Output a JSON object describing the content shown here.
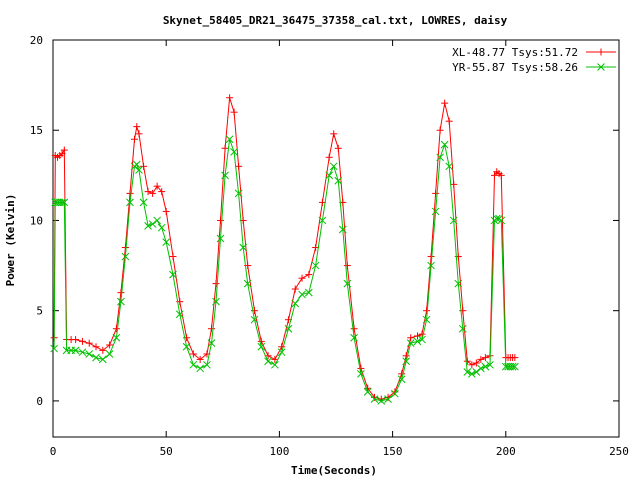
{
  "chart_data": {
    "type": "line",
    "title": "Skynet_58405_DR21_36475_37358_cal.txt, LOWRES, daisy",
    "xlabel": "Time(Seconds)",
    "ylabel": "Power (Kelvin)",
    "xlim": [
      0,
      250
    ],
    "ylim": [
      -2,
      20
    ],
    "xticks": [
      0,
      50,
      100,
      150,
      200,
      250
    ],
    "yticks": [
      0,
      5,
      10,
      15,
      20
    ],
    "legend_position": "top-right",
    "grid": false,
    "series": [
      {
        "name": "XL-48.77 Tsys:51.72",
        "color": "#ff0000",
        "marker": "+",
        "points": [
          [
            0.5,
            3.5
          ],
          [
            1,
            13.6
          ],
          [
            2,
            13.5
          ],
          [
            3,
            13.6
          ],
          [
            4,
            13.7
          ],
          [
            5,
            13.9
          ],
          [
            6,
            3.4
          ],
          [
            8,
            3.4
          ],
          [
            10,
            3.4
          ],
          [
            13,
            3.3
          ],
          [
            16,
            3.2
          ],
          [
            19,
            3.0
          ],
          [
            22,
            2.8
          ],
          [
            25,
            3.1
          ],
          [
            28,
            4.0
          ],
          [
            30,
            6.0
          ],
          [
            32,
            8.5
          ],
          [
            34,
            11.5
          ],
          [
            36,
            14.5
          ],
          [
            37,
            15.2
          ],
          [
            38,
            14.8
          ],
          [
            40,
            13.0
          ],
          [
            42,
            11.6
          ],
          [
            44,
            11.5
          ],
          [
            46,
            11.9
          ],
          [
            48,
            11.6
          ],
          [
            50,
            10.5
          ],
          [
            53,
            8.0
          ],
          [
            56,
            5.5
          ],
          [
            59,
            3.5
          ],
          [
            62,
            2.6
          ],
          [
            65,
            2.3
          ],
          [
            68,
            2.6
          ],
          [
            70,
            4.0
          ],
          [
            72,
            6.5
          ],
          [
            74,
            10.0
          ],
          [
            76,
            14.0
          ],
          [
            78,
            16.8
          ],
          [
            80,
            16.0
          ],
          [
            82,
            13.0
          ],
          [
            84,
            10.0
          ],
          [
            86,
            7.5
          ],
          [
            89,
            5.0
          ],
          [
            92,
            3.3
          ],
          [
            95,
            2.5
          ],
          [
            98,
            2.3
          ],
          [
            101,
            3.0
          ],
          [
            104,
            4.5
          ],
          [
            107,
            6.2
          ],
          [
            110,
            6.8
          ],
          [
            113,
            7.0
          ],
          [
            116,
            8.5
          ],
          [
            119,
            11.0
          ],
          [
            122,
            13.5
          ],
          [
            124,
            14.8
          ],
          [
            126,
            14.0
          ],
          [
            128,
            11.0
          ],
          [
            130,
            7.5
          ],
          [
            133,
            4.0
          ],
          [
            136,
            1.8
          ],
          [
            139,
            0.7
          ],
          [
            142,
            0.2
          ],
          [
            145,
            0.1
          ],
          [
            148,
            0.2
          ],
          [
            151,
            0.5
          ],
          [
            154,
            1.5
          ],
          [
            156,
            2.5
          ],
          [
            158,
            3.5
          ],
          [
            161,
            3.6
          ],
          [
            163,
            3.7
          ],
          [
            165,
            5.0
          ],
          [
            167,
            8.0
          ],
          [
            169,
            11.5
          ],
          [
            171,
            15.0
          ],
          [
            173,
            16.5
          ],
          [
            175,
            15.5
          ],
          [
            177,
            12.0
          ],
          [
            179,
            8.0
          ],
          [
            181,
            5.0
          ],
          [
            183,
            2.2
          ],
          [
            185,
            2.0
          ],
          [
            187,
            2.1
          ],
          [
            189,
            2.3
          ],
          [
            191,
            2.4
          ],
          [
            193,
            2.5
          ],
          [
            195,
            12.5
          ],
          [
            196,
            12.7
          ],
          [
            197,
            12.6
          ],
          [
            198,
            12.5
          ],
          [
            200,
            2.4
          ],
          [
            201,
            2.4
          ],
          [
            202,
            2.4
          ],
          [
            203,
            2.4
          ],
          [
            204,
            2.4
          ]
        ]
      },
      {
        "name": "YR-55.87 Tsys:58.26",
        "color": "#00c000",
        "marker": "x",
        "points": [
          [
            0.5,
            2.9
          ],
          [
            1,
            11.0
          ],
          [
            2,
            11.0
          ],
          [
            3,
            11.0
          ],
          [
            4,
            11.0
          ],
          [
            5,
            11.0
          ],
          [
            6,
            2.8
          ],
          [
            8,
            2.8
          ],
          [
            10,
            2.8
          ],
          [
            13,
            2.7
          ],
          [
            16,
            2.6
          ],
          [
            19,
            2.4
          ],
          [
            22,
            2.3
          ],
          [
            25,
            2.6
          ],
          [
            28,
            3.5
          ],
          [
            30,
            5.5
          ],
          [
            32,
            8.0
          ],
          [
            34,
            11.0
          ],
          [
            36,
            13.0
          ],
          [
            37,
            13.1
          ],
          [
            38,
            12.8
          ],
          [
            40,
            11.0
          ],
          [
            42,
            9.7
          ],
          [
            44,
            9.8
          ],
          [
            46,
            10.0
          ],
          [
            48,
            9.6
          ],
          [
            50,
            8.8
          ],
          [
            53,
            7.0
          ],
          [
            56,
            4.8
          ],
          [
            59,
            3.0
          ],
          [
            62,
            2.0
          ],
          [
            65,
            1.8
          ],
          [
            68,
            2.0
          ],
          [
            70,
            3.2
          ],
          [
            72,
            5.5
          ],
          [
            74,
            9.0
          ],
          [
            76,
            12.5
          ],
          [
            78,
            14.5
          ],
          [
            80,
            13.8
          ],
          [
            82,
            11.5
          ],
          [
            84,
            8.5
          ],
          [
            86,
            6.5
          ],
          [
            89,
            4.5
          ],
          [
            92,
            3.0
          ],
          [
            95,
            2.2
          ],
          [
            98,
            2.0
          ],
          [
            101,
            2.7
          ],
          [
            104,
            4.0
          ],
          [
            107,
            5.4
          ],
          [
            110,
            5.9
          ],
          [
            113,
            6.0
          ],
          [
            116,
            7.5
          ],
          [
            119,
            10.0
          ],
          [
            122,
            12.5
          ],
          [
            124,
            13.0
          ],
          [
            126,
            12.2
          ],
          [
            128,
            9.5
          ],
          [
            130,
            6.5
          ],
          [
            133,
            3.5
          ],
          [
            136,
            1.5
          ],
          [
            139,
            0.5
          ],
          [
            142,
            0.1
          ],
          [
            145,
            0.0
          ],
          [
            148,
            0.1
          ],
          [
            151,
            0.4
          ],
          [
            154,
            1.2
          ],
          [
            156,
            2.2
          ],
          [
            158,
            3.2
          ],
          [
            161,
            3.3
          ],
          [
            163,
            3.4
          ],
          [
            165,
            4.5
          ],
          [
            167,
            7.5
          ],
          [
            169,
            10.5
          ],
          [
            171,
            13.5
          ],
          [
            173,
            14.2
          ],
          [
            175,
            13.0
          ],
          [
            177,
            10.0
          ],
          [
            179,
            6.5
          ],
          [
            181,
            4.0
          ],
          [
            183,
            1.6
          ],
          [
            185,
            1.5
          ],
          [
            187,
            1.6
          ],
          [
            189,
            1.8
          ],
          [
            191,
            1.9
          ],
          [
            193,
            2.0
          ],
          [
            195,
            10.0
          ],
          [
            196,
            10.1
          ],
          [
            197,
            10.1
          ],
          [
            198,
            10.0
          ],
          [
            200,
            1.9
          ],
          [
            201,
            1.9
          ],
          [
            202,
            1.9
          ],
          [
            203,
            1.9
          ],
          [
            204,
            1.9
          ]
        ]
      }
    ]
  }
}
